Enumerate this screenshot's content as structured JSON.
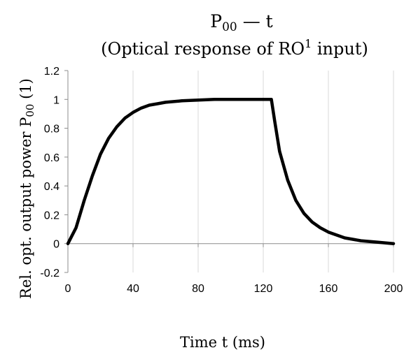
{
  "chart_data": {
    "type": "line",
    "title_main": "P",
    "title_sub": "00",
    "title_suffix": " — t",
    "subtitle_pre": "(Optical response of RO",
    "subtitle_sup": "1",
    "subtitle_post": " input)",
    "ylabel_pre": "Rel. opt. output power P",
    "ylabel_sub": "00",
    "ylabel_post": " (1)",
    "xlabel": "Time  t (ms)",
    "xlim": [
      0,
      200
    ],
    "ylim": [
      -0.2,
      1.2
    ],
    "x_ticks": [
      "0",
      "40",
      "80",
      "120",
      "160",
      "200"
    ],
    "y_ticks": [
      "-0.2",
      "0",
      "0.2",
      "0.4",
      "0.6",
      "0.8",
      "1",
      "1.2"
    ],
    "grid": "vertical",
    "legend": "none",
    "line_color": "#000000",
    "series": [
      {
        "x": [
          0,
          5,
          10,
          15,
          20,
          25,
          30,
          35,
          40,
          45,
          50,
          55,
          60,
          70,
          80,
          90,
          100,
          110,
          120,
          125,
          127,
          130,
          135,
          140,
          145,
          150,
          155,
          160,
          170,
          180,
          190,
          200
        ],
        "values": [
          0,
          0.11,
          0.3,
          0.47,
          0.62,
          0.73,
          0.81,
          0.87,
          0.91,
          0.94,
          0.96,
          0.97,
          0.98,
          0.99,
          0.995,
          1.0,
          1.0,
          1.0,
          1.0,
          1.0,
          0.85,
          0.64,
          0.44,
          0.3,
          0.21,
          0.15,
          0.11,
          0.08,
          0.04,
          0.02,
          0.01,
          0.0
        ]
      }
    ]
  }
}
